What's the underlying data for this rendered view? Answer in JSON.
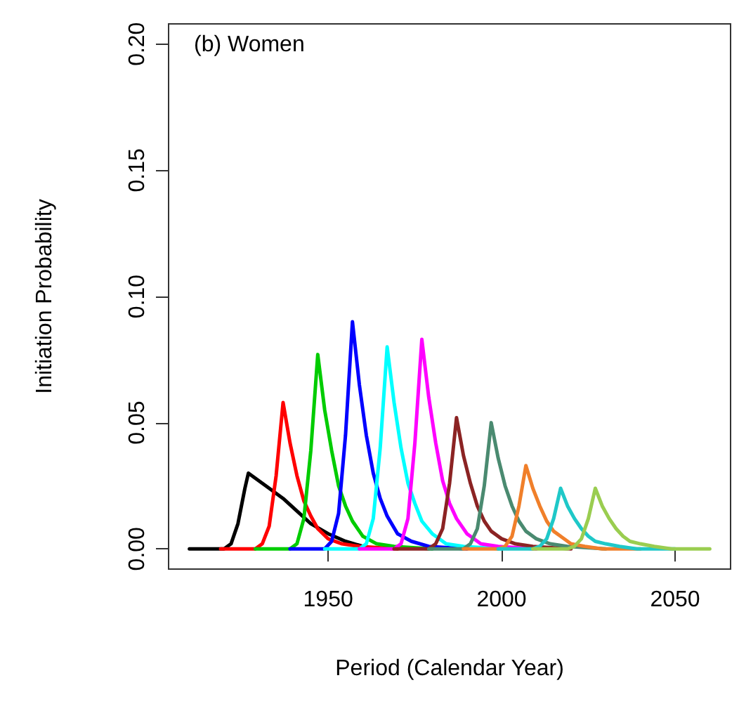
{
  "chart_data": {
    "type": "line",
    "xlabel": "Period (Calendar Year)",
    "ylabel": "Initiation Probability",
    "annotations": [
      "(b) Women"
    ],
    "xlim": [
      1904,
      2066
    ],
    "xticks": [
      1950,
      2000,
      2050
    ],
    "ylim": [
      -0.008,
      0.208
    ],
    "yticks": [
      {
        "value": 0,
        "label": "0.00"
      },
      0.05,
      {
        "value": 0.1,
        "label": "0.10"
      },
      0.15,
      {
        "value": 0.2,
        "label": "0.20"
      }
    ],
    "grid": false,
    "marker": "none",
    "line_style": "solid",
    "series": [
      {
        "color": "#000000",
        "x": [
          1910,
          1920,
          1922,
          1924,
          1926,
          1927,
          1930,
          1933,
          1937,
          1941,
          1945,
          1950,
          1955,
          1960
        ],
        "values": [
          0,
          0,
          0.002,
          0.01,
          0.024,
          0.03,
          0.027,
          0.024,
          0.02,
          0.015,
          0.01,
          0.006,
          0.003,
          0.001
        ]
      },
      {
        "color": "#ff0000",
        "x": [
          1919,
          1929,
          1931,
          1933,
          1935,
          1937,
          1939,
          1941,
          1943,
          1945,
          1947,
          1950,
          1954,
          1959,
          1970
        ],
        "values": [
          0,
          0,
          0.002,
          0.009,
          0.029,
          0.058,
          0.042,
          0.029,
          0.019,
          0.013,
          0.008,
          0.004,
          0.002,
          0.001,
          0
        ]
      },
      {
        "color": "#00cc00",
        "x": [
          1929,
          1939,
          1941,
          1943,
          1945,
          1947,
          1949,
          1951,
          1953,
          1955,
          1957,
          1960,
          1964,
          1969,
          1980
        ],
        "values": [
          0,
          0,
          0.002,
          0.012,
          0.039,
          0.077,
          0.055,
          0.039,
          0.025,
          0.017,
          0.011,
          0.005,
          0.002,
          0.001,
          0
        ]
      },
      {
        "color": "#0000ff",
        "x": [
          1939,
          1949,
          1951,
          1953,
          1955,
          1957,
          1959,
          1961,
          1963,
          1965,
          1967,
          1970,
          1974,
          1979,
          1990
        ],
        "values": [
          0,
          0,
          0.003,
          0.014,
          0.045,
          0.09,
          0.065,
          0.045,
          0.03,
          0.02,
          0.013,
          0.006,
          0.003,
          0.001,
          0
        ]
      },
      {
        "color": "#00ffff",
        "x": [
          1949,
          1959,
          1961,
          1963,
          1965,
          1967,
          1969,
          1971,
          1973,
          1975,
          1977,
          1980,
          1984,
          1989,
          2000
        ],
        "values": [
          0,
          0,
          0.002,
          0.012,
          0.04,
          0.08,
          0.058,
          0.04,
          0.026,
          0.018,
          0.011,
          0.006,
          0.002,
          0.001,
          0
        ]
      },
      {
        "color": "#ff00ff",
        "x": [
          1959,
          1969,
          1971,
          1973,
          1975,
          1977,
          1979,
          1981,
          1983,
          1985,
          1987,
          1990,
          1994,
          1999,
          2010
        ],
        "values": [
          0,
          0,
          0.002,
          0.012,
          0.042,
          0.083,
          0.06,
          0.042,
          0.027,
          0.018,
          0.012,
          0.006,
          0.002,
          0.001,
          0
        ]
      },
      {
        "color": "#8b2323",
        "x": [
          1969,
          1979,
          1981,
          1983,
          1985,
          1987,
          1989,
          1991,
          1993,
          1995,
          1997,
          2000,
          2004,
          2009,
          2020
        ],
        "values": [
          0,
          0,
          0.002,
          0.008,
          0.026,
          0.052,
          0.037,
          0.026,
          0.017,
          0.011,
          0.007,
          0.004,
          0.002,
          0.001,
          0
        ]
      },
      {
        "color": "#4a8a70",
        "x": [
          1979,
          1989,
          1991,
          1993,
          1995,
          1997,
          1999,
          2001,
          2003,
          2005,
          2007,
          2010,
          2014,
          2019,
          2030
        ],
        "values": [
          0,
          0,
          0.002,
          0.008,
          0.025,
          0.05,
          0.036,
          0.025,
          0.017,
          0.011,
          0.007,
          0.004,
          0.002,
          0.001,
          0
        ]
      },
      {
        "color": "#f07f2a",
        "x": [
          1989,
          1999,
          2001,
          2003,
          2005,
          2007,
          2009,
          2011,
          2013,
          2015,
          2017,
          2020,
          2024,
          2029,
          2040
        ],
        "values": [
          0,
          0,
          0.001,
          0.005,
          0.017,
          0.033,
          0.024,
          0.017,
          0.011,
          0.007,
          0.005,
          0.002,
          0.001,
          0,
          0
        ]
      },
      {
        "color": "#1fc8c8",
        "x": [
          1999,
          2009,
          2011,
          2013,
          2015,
          2017,
          2019,
          2021,
          2023,
          2025,
          2027,
          2030,
          2034,
          2039,
          2050
        ],
        "values": [
          0,
          0,
          0.001,
          0.004,
          0.012,
          0.024,
          0.017,
          0.012,
          0.008,
          0.005,
          0.003,
          0.002,
          0.001,
          0,
          0
        ]
      },
      {
        "color": "#9acd50",
        "x": [
          2009,
          2019,
          2021,
          2023,
          2025,
          2027,
          2029,
          2031,
          2033,
          2035,
          2037,
          2040,
          2044,
          2049,
          2060
        ],
        "values": [
          0,
          0,
          0.001,
          0.004,
          0.012,
          0.024,
          0.017,
          0.012,
          0.008,
          0.005,
          0.003,
          0.002,
          0.001,
          0,
          0
        ]
      }
    ]
  }
}
